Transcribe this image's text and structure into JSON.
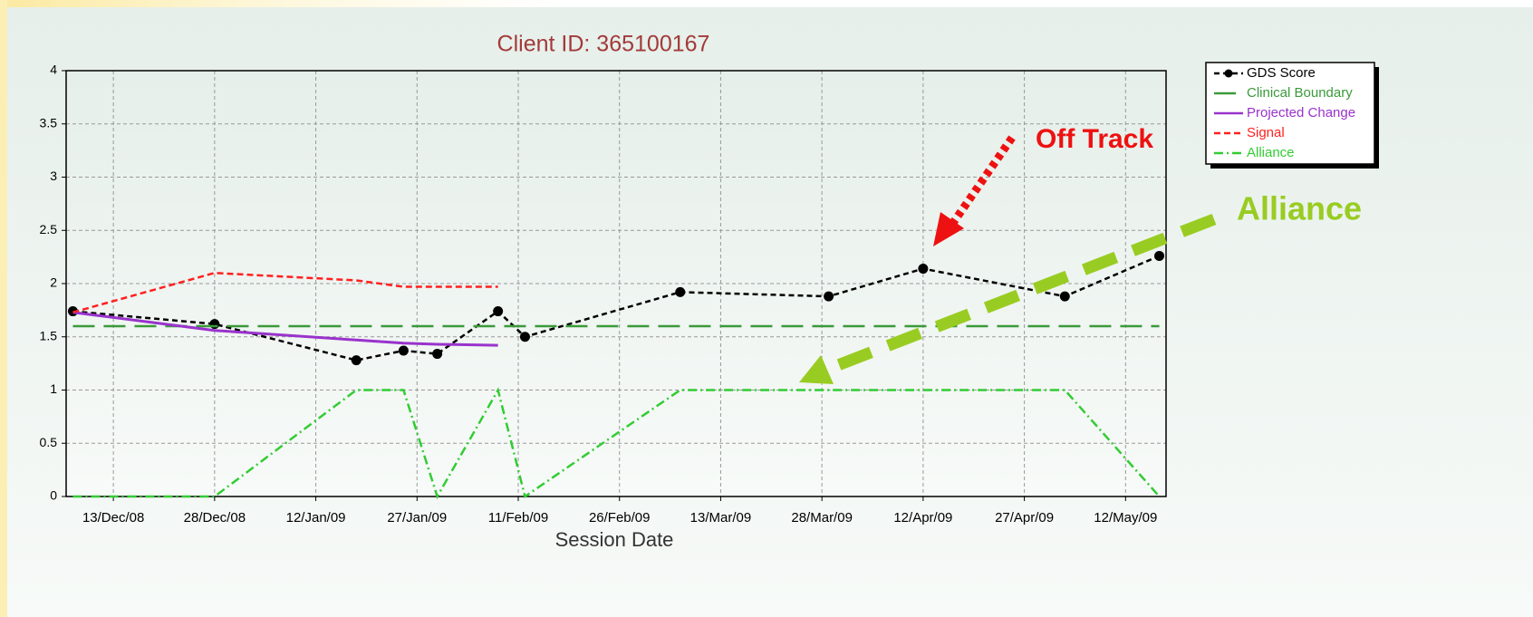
{
  "chart_data": {
    "type": "line",
    "title": "Client ID: 365100167",
    "x_label": "Session Date",
    "x": [
      "2008-12-07",
      "2008-12-28",
      "2009-01-18",
      "2009-01-25",
      "2009-01-30",
      "2009-02-08",
      "2009-02-12",
      "2009-03-07",
      "2009-03-29",
      "2009-04-12",
      "2009-05-03",
      "2009-05-17"
    ],
    "xlim": [
      "2008-12-06",
      "2009-05-18"
    ],
    "xticks": [
      {
        "value": "2008-12-13",
        "label": "13/Dec/08"
      },
      {
        "value": "2008-12-28",
        "label": "28/Dec/08"
      },
      {
        "value": "2009-01-12",
        "label": "12/Jan/09"
      },
      {
        "value": "2009-01-27",
        "label": "27/Jan/09"
      },
      {
        "value": "2009-02-11",
        "label": "11/Feb/09"
      },
      {
        "value": "2009-02-26",
        "label": "26/Feb/09"
      },
      {
        "value": "2009-03-13",
        "label": "13/Mar/09"
      },
      {
        "value": "2009-03-28",
        "label": "28/Mar/09"
      },
      {
        "value": "2009-04-12",
        "label": "12/Apr/09"
      },
      {
        "value": "2009-04-27",
        "label": "27/Apr/09"
      },
      {
        "value": "2009-05-12",
        "label": "12/May/09"
      }
    ],
    "ylim": [
      0,
      4
    ],
    "yticks": [
      0,
      0.5,
      1,
      1.5,
      2,
      2.5,
      3,
      3.5,
      4
    ],
    "grid": true,
    "legend": "top-right",
    "series": [
      {
        "name": "GDS Score",
        "color": "#000000",
        "dash": "6,4",
        "marker": true,
        "values": [
          1.74,
          1.62,
          1.28,
          1.37,
          1.34,
          1.74,
          1.5,
          1.92,
          1.88,
          2.14,
          1.88,
          2.26
        ]
      },
      {
        "name": "Clinical Boundary",
        "color": "#3a9a3a",
        "dash": "24,10",
        "marker": false,
        "values": [
          1.6,
          1.6,
          1.6,
          1.6,
          1.6,
          1.6,
          1.6,
          1.6,
          1.6,
          1.6,
          1.6,
          1.6
        ]
      },
      {
        "name": "Projected Change",
        "color": "#9933cc",
        "dash": "none",
        "marker": false,
        "values": [
          1.73,
          1.56,
          1.47,
          1.44,
          1.43,
          1.42,
          null,
          null,
          null,
          null,
          null,
          null
        ]
      },
      {
        "name": "Signal",
        "color": "#ff2020",
        "dash": "7,4",
        "marker": false,
        "values": [
          1.73,
          2.1,
          2.03,
          1.97,
          1.97,
          1.97,
          null,
          null,
          null,
          null,
          null,
          null
        ]
      },
      {
        "name": "Alliance",
        "color": "#33cc33",
        "dash": "10,4,2,4",
        "marker": false,
        "values": [
          0,
          0,
          1,
          1,
          0,
          1,
          0,
          1,
          1,
          1,
          1,
          0
        ]
      }
    ],
    "annotations": [
      "Off Track",
      "Alliance"
    ]
  }
}
